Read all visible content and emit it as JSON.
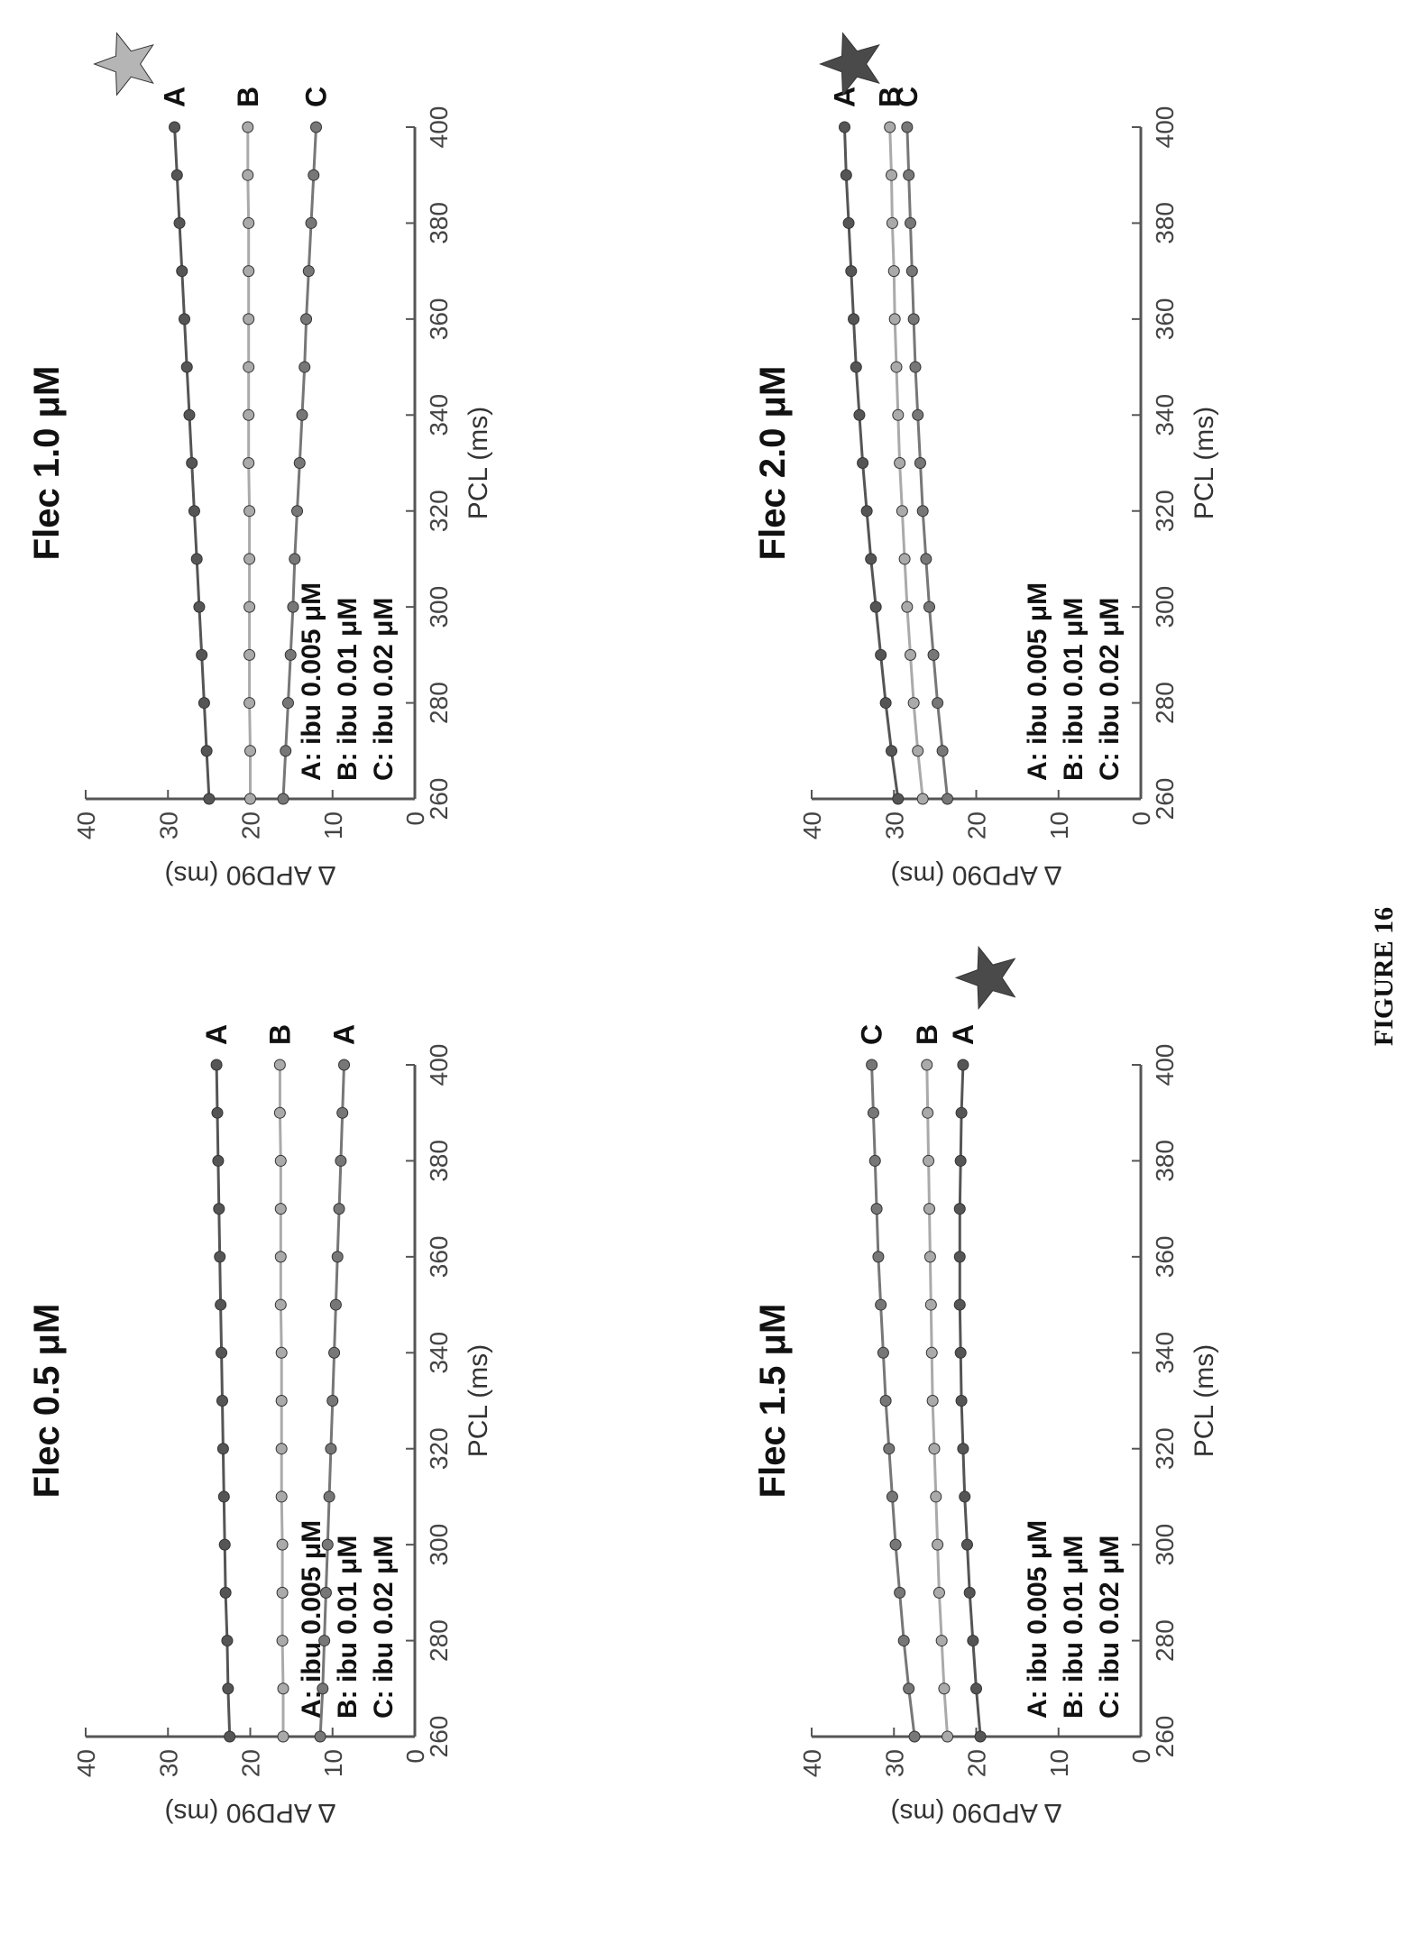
{
  "figure_caption": "FIGURE 16",
  "colors": {
    "A": "#555555",
    "B": "#aaaaaa",
    "C": "#777777",
    "star_light": "#b5b5b5",
    "star_dark": "#4a4a4a"
  },
  "chart_data": [
    {
      "type": "line",
      "title": "Flec 0.5 μM",
      "xlabel": "PCL (ms)",
      "ylabel": "Δ APD90 (ms)",
      "xlim": [
        260,
        400
      ],
      "ylim": [
        0,
        40
      ],
      "xticks": [
        260,
        280,
        300,
        320,
        340,
        360,
        380,
        400
      ],
      "yticks": [
        0,
        10,
        20,
        30,
        40
      ],
      "legend": [
        "A: ibu 0.005 μM",
        "B: ibu 0.01 μM",
        "C: ibu 0.02 μM"
      ],
      "x": [
        260,
        270,
        280,
        290,
        300,
        310,
        320,
        330,
        340,
        350,
        360,
        370,
        380,
        390,
        400
      ],
      "series": [
        {
          "name": "A",
          "label": "A",
          "color": "#555555",
          "values": [
            22.5,
            22.7,
            22.8,
            23.0,
            23.1,
            23.2,
            23.3,
            23.4,
            23.5,
            23.6,
            23.7,
            23.8,
            23.9,
            24.0,
            24.1
          ]
        },
        {
          "name": "B",
          "label": "B",
          "color": "#aaaaaa",
          "values": [
            16.0,
            16.0,
            16.1,
            16.1,
            16.1,
            16.2,
            16.2,
            16.2,
            16.2,
            16.3,
            16.3,
            16.3,
            16.3,
            16.4,
            16.4
          ]
        },
        {
          "name": "C",
          "label": "A",
          "color": "#777777",
          "values": [
            11.5,
            11.2,
            11.0,
            10.8,
            10.6,
            10.4,
            10.2,
            10.0,
            9.8,
            9.6,
            9.4,
            9.2,
            9.0,
            8.8,
            8.6
          ]
        }
      ],
      "stars": []
    },
    {
      "type": "line",
      "title": "Flec 1.0 μM",
      "xlabel": "PCL (ms)",
      "ylabel": "Δ APD90 (ms)",
      "xlim": [
        260,
        400
      ],
      "ylim": [
        0,
        40
      ],
      "xticks": [
        260,
        280,
        300,
        320,
        340,
        360,
        380,
        400
      ],
      "yticks": [
        0,
        10,
        20,
        30,
        40
      ],
      "legend": [
        "A: ibu 0.005 μM",
        "B: ibu 0.01 μM",
        "C: ibu 0.02 μM"
      ],
      "x": [
        260,
        270,
        280,
        290,
        300,
        310,
        320,
        330,
        340,
        350,
        360,
        370,
        380,
        390,
        400
      ],
      "series": [
        {
          "name": "A",
          "label": "A",
          "color": "#555555",
          "values": [
            25.0,
            25.3,
            25.6,
            25.9,
            26.2,
            26.5,
            26.8,
            27.1,
            27.4,
            27.7,
            28.0,
            28.3,
            28.6,
            28.9,
            29.2
          ]
        },
        {
          "name": "B",
          "label": "B",
          "color": "#aaaaaa",
          "values": [
            20.0,
            20.0,
            20.1,
            20.1,
            20.1,
            20.1,
            20.1,
            20.2,
            20.2,
            20.2,
            20.2,
            20.2,
            20.2,
            20.3,
            20.3
          ]
        },
        {
          "name": "C",
          "label": "C",
          "color": "#777777",
          "values": [
            16.0,
            15.7,
            15.4,
            15.1,
            14.8,
            14.6,
            14.3,
            14.0,
            13.7,
            13.4,
            13.2,
            12.9,
            12.6,
            12.3,
            12.0
          ]
        }
      ],
      "stars": [
        {
          "x": 400,
          "y": 35.0,
          "shade": "light"
        }
      ]
    },
    {
      "type": "line",
      "title": "Flec 1.5 μM",
      "xlabel": "PCL (ms)",
      "ylabel": "Δ APD90 (ms)",
      "xlim": [
        260,
        400
      ],
      "ylim": [
        0,
        40
      ],
      "xticks": [
        260,
        280,
        300,
        320,
        340,
        360,
        380,
        400
      ],
      "yticks": [
        0,
        10,
        20,
        30,
        40
      ],
      "legend": [
        "A: ibu 0.005 μM",
        "B: ibu 0.01 μM",
        "C: ibu 0.02 μM"
      ],
      "x": [
        260,
        270,
        280,
        290,
        300,
        310,
        320,
        330,
        340,
        350,
        360,
        370,
        380,
        390,
        400
      ],
      "series": [
        {
          "name": "A",
          "label": "A",
          "color": "#555555",
          "values": [
            19.5,
            20.0,
            20.4,
            20.8,
            21.1,
            21.4,
            21.6,
            21.8,
            21.9,
            22.0,
            22.0,
            22.0,
            21.9,
            21.8,
            21.6
          ]
        },
        {
          "name": "B",
          "label": "B",
          "color": "#aaaaaa",
          "values": [
            23.5,
            23.9,
            24.2,
            24.5,
            24.7,
            24.9,
            25.1,
            25.3,
            25.4,
            25.5,
            25.6,
            25.7,
            25.8,
            25.9,
            26.0
          ]
        },
        {
          "name": "C",
          "label": "C",
          "color": "#777777",
          "values": [
            27.5,
            28.2,
            28.8,
            29.3,
            29.8,
            30.2,
            30.6,
            31.0,
            31.3,
            31.6,
            31.9,
            32.1,
            32.3,
            32.5,
            32.7
          ]
        }
      ],
      "stars": [
        {
          "x": 405,
          "y": 18.5,
          "shade": "dark"
        }
      ]
    },
    {
      "type": "line",
      "title": "Flec 2.0 μM",
      "xlabel": "PCL (ms)",
      "ylabel": "Δ APD90 (ms)",
      "xlim": [
        260,
        400
      ],
      "ylim": [
        0,
        40
      ],
      "xticks": [
        260,
        280,
        300,
        320,
        340,
        360,
        380,
        400
      ],
      "yticks": [
        0,
        10,
        20,
        30,
        40
      ],
      "legend": [
        "A: ibu 0.005 μM",
        "B: ibu 0.01 μM",
        "C: ibu 0.02 μM"
      ],
      "x": [
        260,
        270,
        280,
        290,
        300,
        310,
        320,
        330,
        340,
        350,
        360,
        370,
        380,
        390,
        400
      ],
      "series": [
        {
          "name": "A",
          "label": "A",
          "color": "#555555",
          "values": [
            29.5,
            30.3,
            31.0,
            31.6,
            32.2,
            32.8,
            33.3,
            33.8,
            34.2,
            34.6,
            34.9,
            35.2,
            35.5,
            35.8,
            36.0
          ]
        },
        {
          "name": "B",
          "label": "B",
          "color": "#aaaaaa",
          "values": [
            26.5,
            27.1,
            27.6,
            28.0,
            28.4,
            28.7,
            29.0,
            29.3,
            29.5,
            29.7,
            29.9,
            30.0,
            30.2,
            30.3,
            30.5
          ]
        },
        {
          "name": "C",
          "label": "C",
          "color": "#777777",
          "values": [
            23.5,
            24.1,
            24.7,
            25.2,
            25.7,
            26.1,
            26.5,
            26.8,
            27.1,
            27.4,
            27.6,
            27.8,
            28.0,
            28.2,
            28.4
          ]
        }
      ],
      "stars": [
        {
          "x": 400,
          "y": 35.0,
          "shade": "dark"
        }
      ]
    }
  ]
}
